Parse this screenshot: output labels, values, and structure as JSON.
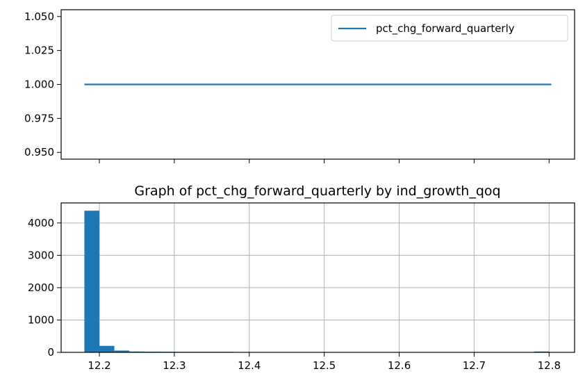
{
  "chart_data": [
    {
      "type": "line",
      "title": "",
      "xlabel": "",
      "ylabel": "",
      "x": [
        12.18,
        12.803
      ],
      "xlim": [
        12.149,
        12.834
      ],
      "series": [
        {
          "name": "pct_chg_forward_quarterly",
          "color": "#1f77b4",
          "x": [
            12.18,
            12.803
          ],
          "values": [
            1.0,
            1.0
          ]
        }
      ],
      "ylim": [
        0.945,
        1.055
      ],
      "yticks": [
        0.95,
        0.975,
        1.0,
        1.025,
        1.05
      ],
      "ytick_labels": [
        "0.950",
        "0.975",
        "1.000",
        "1.025",
        "1.050"
      ],
      "xticks": [
        12.2,
        12.3,
        12.4,
        12.5,
        12.6,
        12.7,
        12.8
      ],
      "xtick_labels_shown": false,
      "legend": {
        "position": "top-right"
      },
      "grid": false
    },
    {
      "type": "bar",
      "title": "Graph of pct_chg_forward_quarterly by ind_growth_qoq",
      "xlabel": "",
      "ylabel": "",
      "bin_edges": [
        12.18,
        12.2,
        12.22,
        12.24,
        12.26,
        12.28,
        12.3,
        12.32,
        12.34,
        12.36,
        12.38,
        12.4,
        12.42,
        12.44,
        12.46,
        12.48,
        12.5,
        12.52,
        12.54,
        12.56,
        12.58,
        12.6,
        12.62,
        12.64,
        12.66,
        12.68,
        12.7,
        12.72,
        12.74,
        12.76,
        12.78,
        12.8
      ],
      "values": [
        4380,
        200,
        55,
        25,
        20,
        18,
        15,
        15,
        15,
        15,
        3,
        2,
        2,
        2,
        2,
        2,
        2,
        2,
        2,
        2,
        2,
        2,
        2,
        2,
        2,
        2,
        2,
        2,
        2,
        2,
        25
      ],
      "color": "#1f77b4",
      "xlim": [
        12.149,
        12.834
      ],
      "ylim": [
        0,
        4620
      ],
      "xticks": [
        12.2,
        12.3,
        12.4,
        12.5,
        12.6,
        12.7,
        12.8
      ],
      "xtick_labels": [
        "12.2",
        "12.3",
        "12.4",
        "12.5",
        "12.6",
        "12.7",
        "12.8"
      ],
      "yticks": [
        0,
        1000,
        2000,
        3000,
        4000
      ],
      "ytick_labels": [
        "0",
        "1000",
        "2000",
        "3000",
        "4000"
      ],
      "grid": true
    }
  ]
}
